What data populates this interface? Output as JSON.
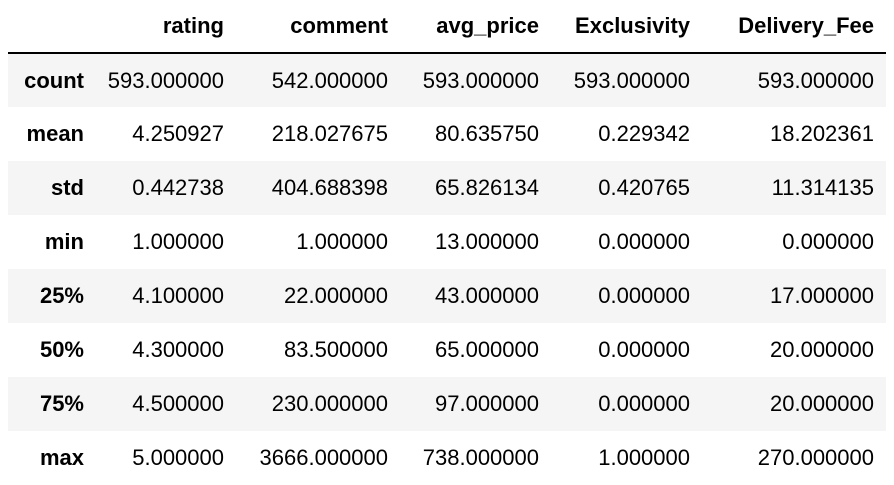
{
  "table": {
    "columns": [
      "",
      "rating",
      "comment",
      "avg_price",
      "Exclusivity",
      "Delivery_Fee"
    ],
    "rows": [
      {
        "index": "count",
        "values": [
          "593.000000",
          "542.000000",
          "593.000000",
          "593.000000",
          "593.000000"
        ]
      },
      {
        "index": "mean",
        "values": [
          "4.250927",
          "218.027675",
          "80.635750",
          "0.229342",
          "18.202361"
        ]
      },
      {
        "index": "std",
        "values": [
          "0.442738",
          "404.688398",
          "65.826134",
          "0.420765",
          "11.314135"
        ]
      },
      {
        "index": "min",
        "values": [
          "1.000000",
          "1.000000",
          "13.000000",
          "0.000000",
          "0.000000"
        ]
      },
      {
        "index": "25%",
        "values": [
          "4.100000",
          "22.000000",
          "43.000000",
          "0.000000",
          "17.000000"
        ]
      },
      {
        "index": "50%",
        "values": [
          "4.300000",
          "83.500000",
          "65.000000",
          "0.000000",
          "20.000000"
        ]
      },
      {
        "index": "75%",
        "values": [
          "4.500000",
          "230.000000",
          "97.000000",
          "0.000000",
          "20.000000"
        ]
      },
      {
        "index": "max",
        "values": [
          "5.000000",
          "3666.000000",
          "738.000000",
          "1.000000",
          "270.000000"
        ]
      }
    ]
  }
}
